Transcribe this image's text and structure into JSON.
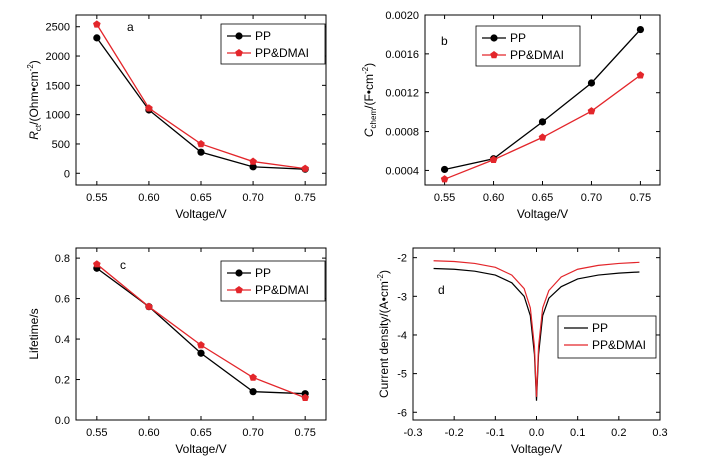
{
  "colors": {
    "PP": "#000000",
    "PP&DMAI": "#e3262b"
  },
  "chart_data": [
    {
      "id": "a",
      "type": "line",
      "panel_label": "a",
      "xlabel": "Voltage/V",
      "ylabel_main": "R",
      "ylabel_sub": "ct",
      "ylabel_rest": "/(Ohm•cm",
      "ylabel_sup": "-2",
      "ylabel_end": ")",
      "xlim": [
        0.53,
        0.77
      ],
      "ylim": [
        -200,
        2700
      ],
      "xticks": [
        0.55,
        0.6,
        0.65,
        0.7,
        0.75
      ],
      "xtick_labels": [
        "0.55",
        "0.60",
        "0.65",
        "0.70",
        "0.75"
      ],
      "yticks": [
        0,
        500,
        1000,
        1500,
        2000,
        2500
      ],
      "ytick_labels": [
        "0",
        "500",
        "1000",
        "1500",
        "2000",
        "2500"
      ],
      "x": [
        0.55,
        0.6,
        0.65,
        0.7,
        0.75
      ],
      "series": [
        {
          "name": "PP",
          "values": [
            2310,
            1080,
            360,
            110,
            70
          ]
        },
        {
          "name": "PP&DMAI",
          "values": [
            2540,
            1110,
            500,
            200,
            80
          ]
        }
      ],
      "legend": "top-right",
      "grid": false
    },
    {
      "id": "b",
      "type": "line",
      "panel_label": "b",
      "xlabel": "Voltage/V",
      "ylabel_main": "C",
      "ylabel_sub": "chem",
      "ylabel_rest": "/(F•cm",
      "ylabel_sup": "-2",
      "ylabel_end": ")",
      "xlim": [
        0.53,
        0.77
      ],
      "ylim": [
        0.00025,
        0.002
      ],
      "xticks": [
        0.55,
        0.6,
        0.65,
        0.7,
        0.75
      ],
      "xtick_labels": [
        "0.55",
        "0.60",
        "0.65",
        "0.70",
        "0.75"
      ],
      "yticks": [
        0.0004,
        0.0008,
        0.0012,
        0.0016,
        0.002
      ],
      "ytick_labels": [
        "0.0004",
        "0.0008",
        "0.0012",
        "0.0016",
        "0.0020"
      ],
      "x": [
        0.55,
        0.6,
        0.65,
        0.7,
        0.75
      ],
      "series": [
        {
          "name": "PP",
          "values": [
            0.00041,
            0.00052,
            0.0009,
            0.0013,
            0.00185
          ]
        },
        {
          "name": "PP&DMAI",
          "values": [
            0.00031,
            0.00051,
            0.00074,
            0.00101,
            0.00138
          ]
        }
      ],
      "legend": "top-left",
      "grid": false
    },
    {
      "id": "c",
      "type": "line",
      "panel_label": "c",
      "xlabel": "Voltage/V",
      "ylabel_main": "Lifetime/s",
      "ylabel_sub": "",
      "ylabel_rest": "",
      "ylabel_sup": "",
      "ylabel_end": "",
      "xlim": [
        0.53,
        0.77
      ],
      "ylim": [
        0,
        0.85
      ],
      "xticks": [
        0.55,
        0.6,
        0.65,
        0.7,
        0.75
      ],
      "xtick_labels": [
        "0.55",
        "0.60",
        "0.65",
        "0.70",
        "0.75"
      ],
      "yticks": [
        0.0,
        0.2,
        0.4,
        0.6,
        0.8
      ],
      "ytick_labels": [
        "0.0",
        "0.2",
        "0.4",
        "0.6",
        "0.8"
      ],
      "x": [
        0.55,
        0.6,
        0.65,
        0.7,
        0.75
      ],
      "series": [
        {
          "name": "PP",
          "values": [
            0.75,
            0.56,
            0.33,
            0.14,
            0.13
          ]
        },
        {
          "name": "PP&DMAI",
          "values": [
            0.77,
            0.56,
            0.37,
            0.21,
            0.11
          ]
        }
      ],
      "legend": "top-right",
      "grid": false
    },
    {
      "id": "d",
      "type": "line",
      "panel_label": "d",
      "xlabel": "Voltage/V",
      "ylabel_main": "Current density/(A•cm",
      "ylabel_sub": "",
      "ylabel_rest": "",
      "ylabel_sup": "-2",
      "ylabel_end": ")",
      "xlim": [
        -0.3,
        0.3
      ],
      "ylim": [
        -6.2,
        -1.75
      ],
      "xticks": [
        -0.3,
        -0.2,
        -0.1,
        0.0,
        0.1,
        0.2,
        0.3
      ],
      "xtick_labels": [
        "-0.3",
        "-0.2",
        "-0.1",
        "0.0",
        "0.1",
        "0.2",
        "0.3"
      ],
      "yticks": [
        -6,
        -5,
        -4,
        -3,
        -2
      ],
      "ytick_labels": [
        "-6",
        "-5",
        "-4",
        "-3",
        "-2"
      ],
      "series": [
        {
          "name": "PP",
          "x": [
            -0.25,
            -0.2,
            -0.15,
            -0.1,
            -0.06,
            -0.03,
            -0.015,
            -0.005,
            0.0,
            0.005,
            0.015,
            0.03,
            0.06,
            0.1,
            0.15,
            0.2,
            0.25
          ],
          "values": [
            -2.28,
            -2.3,
            -2.35,
            -2.45,
            -2.65,
            -3.0,
            -3.5,
            -4.5,
            -5.7,
            -4.5,
            -3.5,
            -3.05,
            -2.75,
            -2.55,
            -2.45,
            -2.4,
            -2.37
          ]
        },
        {
          "name": "PP&DMAI",
          "x": [
            -0.25,
            -0.2,
            -0.15,
            -0.1,
            -0.06,
            -0.03,
            -0.015,
            -0.005,
            0.0,
            0.005,
            0.015,
            0.03,
            0.06,
            0.1,
            0.15,
            0.2,
            0.25
          ],
          "values": [
            -2.08,
            -2.1,
            -2.15,
            -2.25,
            -2.45,
            -2.8,
            -3.3,
            -4.3,
            -5.6,
            -4.3,
            -3.3,
            -2.85,
            -2.5,
            -2.3,
            -2.2,
            -2.15,
            -2.12
          ]
        }
      ],
      "legend": "bottom-left",
      "grid": false
    }
  ]
}
